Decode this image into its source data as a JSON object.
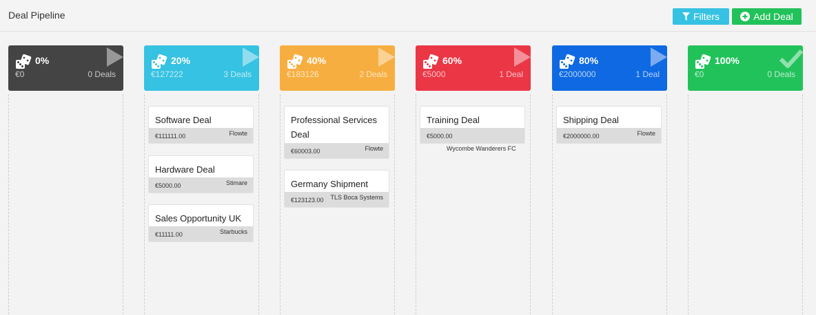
{
  "header": {
    "title": "Deal Pipeline",
    "filters_label": "Filters",
    "add_label": "Add Deal"
  },
  "colors": {
    "filters_button": "#36c2e2",
    "add_button": "#22c25b"
  },
  "stages": [
    {
      "percent": "0%",
      "amount": "€0",
      "count": "0 Deals",
      "color": "#444444",
      "icon": "play-arrow-icon",
      "cards": []
    },
    {
      "percent": "20%",
      "amount": "€127222",
      "count": "3 Deals",
      "color": "#36c2e2",
      "icon": "play-arrow-icon",
      "cards": [
        {
          "title": "Software Deal",
          "value": "€111111.00",
          "company": "Flowte"
        },
        {
          "title": "Hardware Deal",
          "value": "€5000.00",
          "company": "Stimare"
        },
        {
          "title": "Sales Opportunity UK",
          "value": "€11111.00",
          "company": "Starbucks"
        }
      ]
    },
    {
      "percent": "40%",
      "amount": "€183126",
      "count": "2 Deals",
      "color": "#f7ae40",
      "icon": "play-arrow-icon",
      "cards": [
        {
          "title": "Professional Services Deal",
          "value": "€60003.00",
          "company": "Flowte"
        },
        {
          "title": "Germany Shipment",
          "value": "€123123.00",
          "company": "TLS Boca Systems"
        }
      ]
    },
    {
      "percent": "60%",
      "amount": "€5000",
      "count": "1 Deal",
      "color": "#eb3646",
      "icon": "play-arrow-icon",
      "cards": [
        {
          "title": "Training Deal",
          "value": "€5000.00",
          "company": "Wycombe Wanderers FC"
        }
      ]
    },
    {
      "percent": "80%",
      "amount": "€2000000",
      "count": "1 Deal",
      "color": "#0f69e2",
      "icon": "play-arrow-icon",
      "cards": [
        {
          "title": "Shipping Deal",
          "value": "€2000000.00",
          "company": "Flowte"
        }
      ]
    },
    {
      "percent": "100%",
      "amount": "€0",
      "count": "0 Deals",
      "color": "#22c25b",
      "icon": "check-icon",
      "cards": []
    }
  ]
}
